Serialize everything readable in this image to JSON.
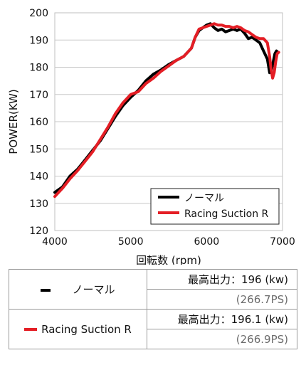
{
  "chart_data": {
    "type": "line",
    "title": "",
    "xlabel": "回転数 (rpm)",
    "ylabel": "POWER(KW)",
    "xlim": [
      4000,
      7000
    ],
    "ylim": [
      120,
      200
    ],
    "x_ticks": [
      4000,
      5000,
      6000,
      7000
    ],
    "y_ticks": [
      120,
      130,
      140,
      150,
      160,
      170,
      180,
      190,
      200
    ],
    "x_tick_labels": [
      "4000",
      "5000",
      "6000",
      "7000"
    ],
    "y_tick_labels": [
      "120",
      "130",
      "140",
      "150",
      "160",
      "170",
      "180",
      "190",
      "200"
    ],
    "grid": "horizontal",
    "legend_position": "bottom-right",
    "series": [
      {
        "name": "ノーマル",
        "color": "#000000",
        "points": [
          [
            4000,
            134
          ],
          [
            4100,
            136
          ],
          [
            4200,
            140
          ],
          [
            4300,
            142.5
          ],
          [
            4400,
            146
          ],
          [
            4500,
            149.5
          ],
          [
            4600,
            153
          ],
          [
            4700,
            157.5
          ],
          [
            4800,
            162
          ],
          [
            4900,
            166
          ],
          [
            5000,
            169
          ],
          [
            5100,
            171.5
          ],
          [
            5200,
            175
          ],
          [
            5300,
            177.5
          ],
          [
            5400,
            179
          ],
          [
            5500,
            181
          ],
          [
            5600,
            182.5
          ],
          [
            5700,
            184
          ],
          [
            5800,
            187
          ],
          [
            5850,
            191
          ],
          [
            5900,
            193.5
          ],
          [
            5950,
            194.5
          ],
          [
            6000,
            195.5
          ],
          [
            6050,
            196
          ],
          [
            6100,
            194.5
          ],
          [
            6150,
            193.5
          ],
          [
            6200,
            194
          ],
          [
            6250,
            193
          ],
          [
            6300,
            193.5
          ],
          [
            6350,
            194
          ],
          [
            6400,
            193.5
          ],
          [
            6450,
            194
          ],
          [
            6500,
            192.5
          ],
          [
            6550,
            190.5
          ],
          [
            6600,
            191
          ],
          [
            6650,
            190
          ],
          [
            6700,
            189
          ],
          [
            6750,
            186
          ],
          [
            6800,
            183
          ],
          [
            6830,
            178
          ],
          [
            6850,
            178.5
          ],
          [
            6870,
            181
          ],
          [
            6900,
            185
          ],
          [
            6920,
            186
          ],
          [
            6940,
            185.5
          ]
        ]
      },
      {
        "name": "Racing Suction R",
        "color": "#e41e25",
        "points": [
          [
            4000,
            132.5
          ],
          [
            4100,
            135.5
          ],
          [
            4200,
            139
          ],
          [
            4300,
            142
          ],
          [
            4400,
            145.5
          ],
          [
            4500,
            149
          ],
          [
            4600,
            153.5
          ],
          [
            4700,
            158
          ],
          [
            4800,
            163
          ],
          [
            4900,
            167
          ],
          [
            5000,
            170
          ],
          [
            5100,
            171
          ],
          [
            5200,
            174
          ],
          [
            5300,
            176
          ],
          [
            5400,
            178.5
          ],
          [
            5500,
            180.5
          ],
          [
            5600,
            182.5
          ],
          [
            5700,
            184
          ],
          [
            5800,
            187
          ],
          [
            5850,
            191
          ],
          [
            5900,
            194
          ],
          [
            5950,
            194.5
          ],
          [
            6000,
            195
          ],
          [
            6050,
            195.5
          ],
          [
            6100,
            196
          ],
          [
            6150,
            195.5
          ],
          [
            6200,
            195.5
          ],
          [
            6250,
            195
          ],
          [
            6300,
            195
          ],
          [
            6350,
            194.5
          ],
          [
            6400,
            195
          ],
          [
            6450,
            194.5
          ],
          [
            6500,
            193.5
          ],
          [
            6550,
            193
          ],
          [
            6600,
            192
          ],
          [
            6650,
            191
          ],
          [
            6700,
            190.5
          ],
          [
            6750,
            190.5
          ],
          [
            6800,
            189
          ],
          [
            6830,
            184
          ],
          [
            6850,
            179
          ],
          [
            6870,
            176
          ],
          [
            6890,
            178
          ],
          [
            6910,
            182
          ],
          [
            6930,
            185
          ],
          [
            6950,
            185.5
          ]
        ]
      }
    ]
  },
  "legend": {
    "items": [
      {
        "label": "ノーマル",
        "color": "#000000"
      },
      {
        "label": "Racing Suction R",
        "color": "#e41e25"
      }
    ]
  },
  "summary_table": {
    "rows": [
      {
        "series": "ノーマル",
        "max_label": "最高出力：196 (kw)",
        "ps_label": "(266.7PS)"
      },
      {
        "series": "Racing Suction R",
        "max_label": "最高出力：196.1 (kw)",
        "ps_label": "(266.9PS)"
      }
    ]
  }
}
